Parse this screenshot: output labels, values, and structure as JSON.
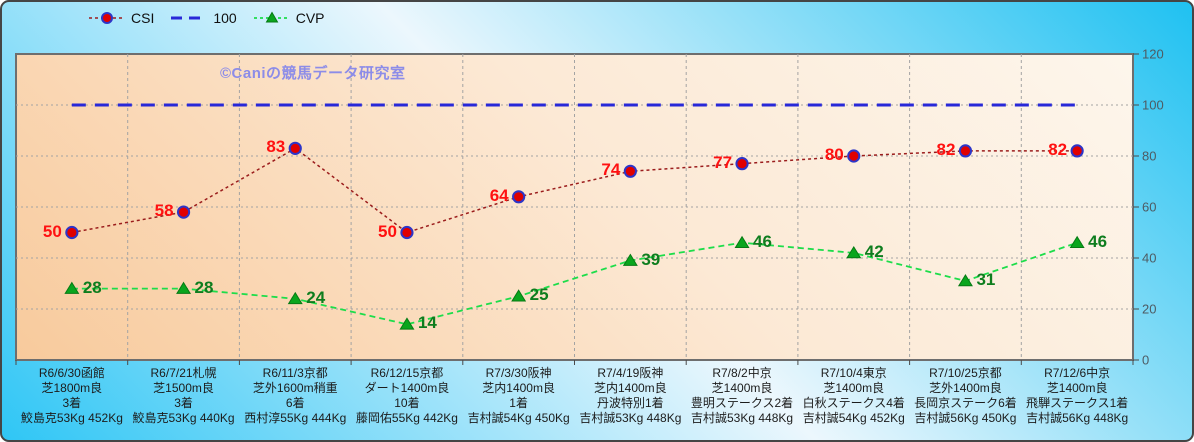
{
  "watermark": {
    "text": "©Caniの競馬データ研究室",
    "color": "#8c8ce8"
  },
  "colors": {
    "frame_border": "#454545",
    "plot_border": "#6e6e6e",
    "background_gradient": [
      "#2fc6f5",
      "#ecf7fd",
      "#1fc1f1"
    ],
    "plot_gradient": [
      "#f8ca9c",
      "#fdf6ec"
    ],
    "gridline": "#a3a3a3",
    "axis_tick": "#4a4a4a",
    "ytick_text": "#4e5b63",
    "xlabel_text": "#1c1c1c"
  },
  "chart_data": {
    "type": "line",
    "title": "",
    "xlabel": "",
    "ylabel": "",
    "ylim": [
      0,
      120
    ],
    "yticks": [
      0,
      20,
      40,
      60,
      80,
      100,
      120
    ],
    "grid": true,
    "legend_position": "top",
    "yaxis_side": "right",
    "categories": [
      [
        "R6/6/30函館",
        "芝1800m良",
        "3着",
        "鮫島克53Kg 452Kg"
      ],
      [
        "R6/7/21札幌",
        "芝1500m良",
        "3着",
        "鮫島克53Kg 440Kg"
      ],
      [
        "R6/11/3京都",
        "芝外1600m稍重",
        "6着",
        "西村淳55Kg 444Kg"
      ],
      [
        "R6/12/15京都",
        "ダート1400m良",
        "10着",
        "藤岡佑55Kg 442Kg"
      ],
      [
        "R7/3/30阪神",
        "芝内1400m良",
        "1着",
        "吉村誠54Kg 450Kg"
      ],
      [
        "R7/4/19阪神",
        "芝内1400m良",
        "丹波特別1着",
        "吉村誠53Kg 448Kg"
      ],
      [
        "R7/8/2中京",
        "芝1400m良",
        "豊明ステークス2着",
        "吉村誠53Kg 448Kg"
      ],
      [
        "R7/10/4東京",
        "芝1400m良",
        "白秋ステークス4着",
        "吉村誠54Kg 452Kg"
      ],
      [
        "R7/10/25京都",
        "芝外1400m良",
        "長岡京ステーク6着",
        "吉村誠56Kg 450Kg"
      ],
      [
        "R7/12/6中京",
        "芝1400m良",
        "飛騨ステークス1着",
        "吉村誠56Kg 448Kg"
      ]
    ],
    "series": [
      {
        "name": "CSI",
        "values": [
          50,
          58,
          83,
          50,
          64,
          74,
          77,
          80,
          82,
          82
        ],
        "line_color": "#9b1c1c",
        "dash": "3 3",
        "line_width": 1.5,
        "marker": "circle",
        "marker_fill": "#e00000",
        "marker_edge": "#2d35c8",
        "show_labels": true,
        "label_color": "#ff1111",
        "label_side": "left"
      },
      {
        "name": "100",
        "values": [
          100,
          100,
          100,
          100,
          100,
          100,
          100,
          100,
          100,
          100
        ],
        "line_color": "#2828d8",
        "dash": "14 9",
        "line_width": 3,
        "marker": "none",
        "show_labels": false
      },
      {
        "name": "CVP",
        "values": [
          28,
          28,
          24,
          14,
          25,
          39,
          46,
          42,
          31,
          46
        ],
        "line_color": "#1ddd4a",
        "dash": "6 4",
        "line_width": 1.8,
        "marker": "triangle",
        "marker_fill": "#0aa51d",
        "marker_edge": "#077a14",
        "show_labels": true,
        "label_color": "#0e7d1e",
        "label_side": "right"
      }
    ]
  }
}
